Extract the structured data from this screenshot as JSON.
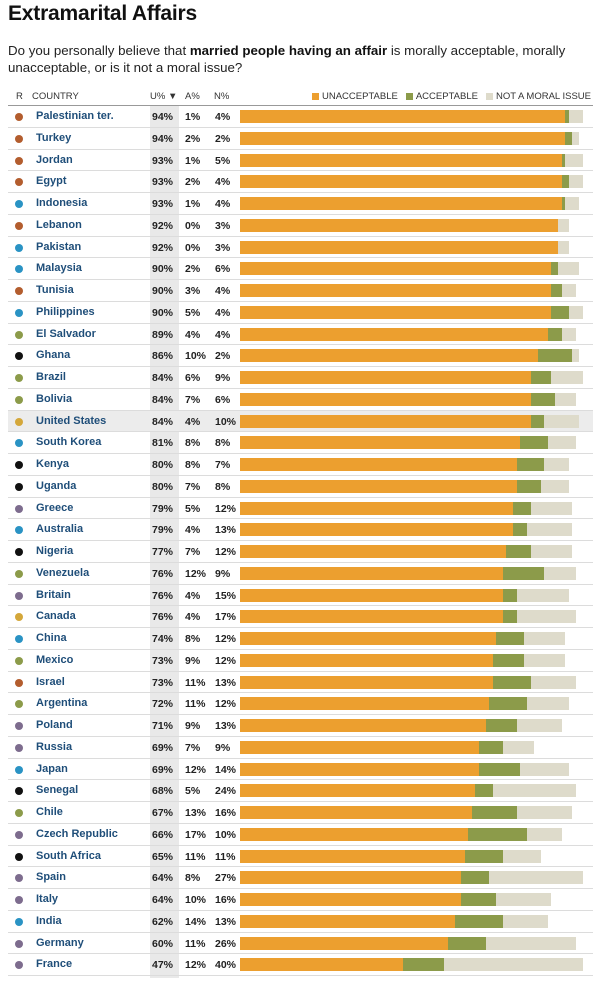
{
  "title": "Extramarital Affairs",
  "question": {
    "before": "Do you personally believe that ",
    "bold": "married people having an affair",
    "after": " is morally acceptable, morally unacceptable, or is it not a moral issue?"
  },
  "headers": {
    "r": "R",
    "country": "COUNTRY",
    "u": "U% ▼",
    "a": "A%",
    "n": "N%"
  },
  "colors": {
    "unacceptable": "#ec9f2f",
    "acceptable": "#8c9b4a",
    "not_moral": "#dedbcb"
  },
  "chart_data": {
    "type": "bar",
    "stacked": true,
    "orientation": "horizontal",
    "legend": "top-right",
    "series": [
      {
        "name": "UNACCEPTABLE",
        "key": "u"
      },
      {
        "name": "ACCEPTABLE",
        "key": "a"
      },
      {
        "name": "NOT A MORAL ISSUE",
        "key": "n"
      }
    ],
    "rows": [
      {
        "country": "Palestinian ter.",
        "u": 94,
        "a": 1,
        "n": 4,
        "region": "#b35d2e"
      },
      {
        "country": "Turkey",
        "u": 94,
        "a": 2,
        "n": 2,
        "region": "#b35d2e"
      },
      {
        "country": "Jordan",
        "u": 93,
        "a": 1,
        "n": 5,
        "region": "#b35d2e"
      },
      {
        "country": "Egypt",
        "u": 93,
        "a": 2,
        "n": 4,
        "region": "#b35d2e"
      },
      {
        "country": "Indonesia",
        "u": 93,
        "a": 1,
        "n": 4,
        "region": "#2a93c4"
      },
      {
        "country": "Lebanon",
        "u": 92,
        "a": 0,
        "n": 3,
        "region": "#b35d2e"
      },
      {
        "country": "Pakistan",
        "u": 92,
        "a": 0,
        "n": 3,
        "region": "#2a93c4"
      },
      {
        "country": "Malaysia",
        "u": 90,
        "a": 2,
        "n": 6,
        "region": "#2a93c4"
      },
      {
        "country": "Tunisia",
        "u": 90,
        "a": 3,
        "n": 4,
        "region": "#b35d2e"
      },
      {
        "country": "Philippines",
        "u": 90,
        "a": 5,
        "n": 4,
        "region": "#2a93c4"
      },
      {
        "country": "El Salvador",
        "u": 89,
        "a": 4,
        "n": 4,
        "region": "#8c9b4a"
      },
      {
        "country": "Ghana",
        "u": 86,
        "a": 10,
        "n": 2,
        "region": "#111111"
      },
      {
        "country": "Brazil",
        "u": 84,
        "a": 6,
        "n": 9,
        "region": "#8c9b4a"
      },
      {
        "country": "Bolivia",
        "u": 84,
        "a": 7,
        "n": 6,
        "region": "#8c9b4a"
      },
      {
        "country": "United States",
        "u": 84,
        "a": 4,
        "n": 10,
        "region": "#d4a73a",
        "highlight": true
      },
      {
        "country": "South Korea",
        "u": 81,
        "a": 8,
        "n": 8,
        "region": "#2a93c4"
      },
      {
        "country": "Kenya",
        "u": 80,
        "a": 8,
        "n": 7,
        "region": "#111111"
      },
      {
        "country": "Uganda",
        "u": 80,
        "a": 7,
        "n": 8,
        "region": "#111111"
      },
      {
        "country": "Greece",
        "u": 79,
        "a": 5,
        "n": 12,
        "region": "#7d6c8e"
      },
      {
        "country": "Australia",
        "u": 79,
        "a": 4,
        "n": 13,
        "region": "#2a93c4"
      },
      {
        "country": "Nigeria",
        "u": 77,
        "a": 7,
        "n": 12,
        "region": "#111111"
      },
      {
        "country": "Venezuela",
        "u": 76,
        "a": 12,
        "n": 9,
        "region": "#8c9b4a"
      },
      {
        "country": "Britain",
        "u": 76,
        "a": 4,
        "n": 15,
        "region": "#7d6c8e"
      },
      {
        "country": "Canada",
        "u": 76,
        "a": 4,
        "n": 17,
        "region": "#d4a73a"
      },
      {
        "country": "China",
        "u": 74,
        "a": 8,
        "n": 12,
        "region": "#2a93c4"
      },
      {
        "country": "Mexico",
        "u": 73,
        "a": 9,
        "n": 12,
        "region": "#8c9b4a"
      },
      {
        "country": "Israel",
        "u": 73,
        "a": 11,
        "n": 13,
        "region": "#b35d2e"
      },
      {
        "country": "Argentina",
        "u": 72,
        "a": 11,
        "n": 12,
        "region": "#8c9b4a"
      },
      {
        "country": "Poland",
        "u": 71,
        "a": 9,
        "n": 13,
        "region": "#7d6c8e"
      },
      {
        "country": "Russia",
        "u": 69,
        "a": 7,
        "n": 9,
        "region": "#7d6c8e"
      },
      {
        "country": "Japan",
        "u": 69,
        "a": 12,
        "n": 14,
        "region": "#2a93c4"
      },
      {
        "country": "Senegal",
        "u": 68,
        "a": 5,
        "n": 24,
        "region": "#111111"
      },
      {
        "country": "Chile",
        "u": 67,
        "a": 13,
        "n": 16,
        "region": "#8c9b4a"
      },
      {
        "country": "Czech Republic",
        "u": 66,
        "a": 17,
        "n": 10,
        "region": "#7d6c8e"
      },
      {
        "country": "South Africa",
        "u": 65,
        "a": 11,
        "n": 11,
        "region": "#111111"
      },
      {
        "country": "Spain",
        "u": 64,
        "a": 8,
        "n": 27,
        "region": "#7d6c8e"
      },
      {
        "country": "Italy",
        "u": 64,
        "a": 10,
        "n": 16,
        "region": "#7d6c8e"
      },
      {
        "country": "India",
        "u": 62,
        "a": 14,
        "n": 13,
        "region": "#2a93c4"
      },
      {
        "country": "Germany",
        "u": 60,
        "a": 11,
        "n": 26,
        "region": "#7d6c8e"
      },
      {
        "country": "France",
        "u": 47,
        "a": 12,
        "n": 40,
        "region": "#7d6c8e"
      }
    ]
  }
}
